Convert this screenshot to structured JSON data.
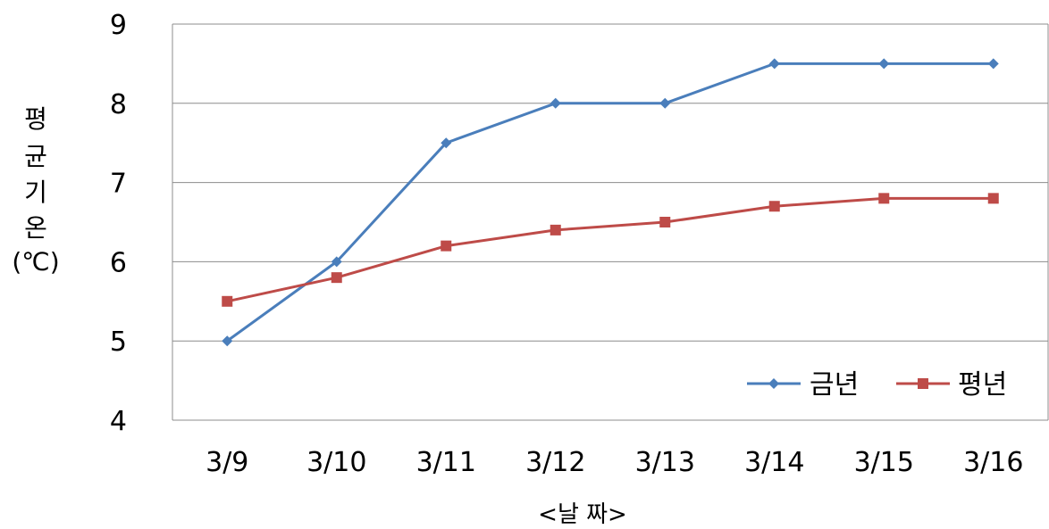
{
  "chart_data": {
    "type": "line",
    "categories": [
      "3/9",
      "3/10",
      "3/11",
      "3/12",
      "3/13",
      "3/14",
      "3/15",
      "3/16"
    ],
    "series": [
      {
        "name": "금년",
        "color": "#4a7ebb",
        "marker": "diamond",
        "values": [
          5.0,
          6.0,
          7.5,
          8.0,
          8.0,
          8.5,
          8.5,
          8.5
        ]
      },
      {
        "name": "평년",
        "color": "#be4b48",
        "marker": "square",
        "values": [
          5.5,
          5.8,
          6.2,
          6.4,
          6.5,
          6.7,
          6.8,
          6.8
        ]
      }
    ],
    "ylim": [
      4,
      9
    ],
    "yticks": [
      "4",
      "5",
      "6",
      "7",
      "8",
      "9"
    ],
    "ylabel_lines": [
      "평",
      "균",
      "기",
      "온",
      "(℃)"
    ],
    "xlabel": "<날 짜>",
    "grid": true,
    "legend_position": "bottom-right"
  }
}
